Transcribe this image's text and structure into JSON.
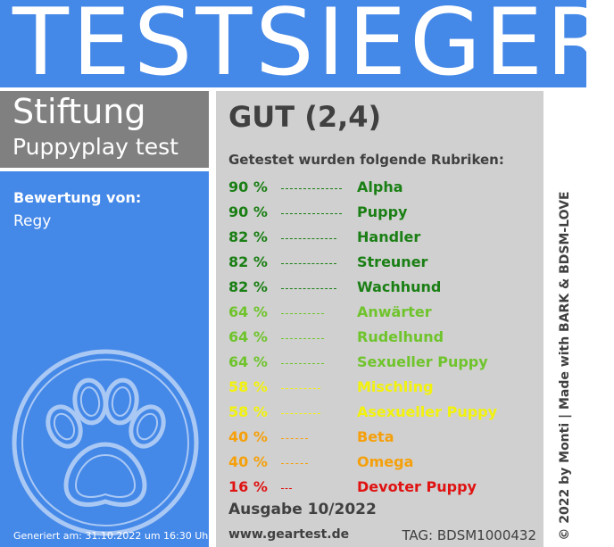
{
  "banner": {
    "title": "TESTSIEGER"
  },
  "organization": {
    "line1": "Stiftung",
    "line2": "Puppyplay test"
  },
  "rater": {
    "label": "Bewertung von:",
    "name": "Regy"
  },
  "generated": "Generiert am: 31.10.2022 um 16:30 Uhr",
  "result": {
    "grade": "GUT (2,4)",
    "intro": "Getestet wurden folgende Rubriken:"
  },
  "rows": [
    {
      "pct": "90 %",
      "category": "Alpha",
      "color": "#1a7f14",
      "level": 0.9
    },
    {
      "pct": "90 %",
      "category": "Puppy",
      "color": "#1a7f14",
      "level": 0.9
    },
    {
      "pct": "82 %",
      "category": "Handler",
      "color": "#1a7f14",
      "level": 0.82
    },
    {
      "pct": "82 %",
      "category": "Streuner",
      "color": "#1a7f14",
      "level": 0.82
    },
    {
      "pct": "82 %",
      "category": "Wachhund",
      "color": "#1a7f14",
      "level": 0.82
    },
    {
      "pct": "64 %",
      "category": "Anwärter",
      "color": "#6fc42c",
      "level": 0.64
    },
    {
      "pct": "64 %",
      "category": "Rudelhund",
      "color": "#6fc42c",
      "level": 0.64
    },
    {
      "pct": "64 %",
      "category": "Sexueller Puppy",
      "color": "#6fc42c",
      "level": 0.64
    },
    {
      "pct": "58 %",
      "category": "Mischling",
      "color": "#f2f20c",
      "level": 0.58
    },
    {
      "pct": "58 %",
      "category": "Asexueller Puppy",
      "color": "#f2f20c",
      "level": 0.58
    },
    {
      "pct": "40 %",
      "category": "Beta",
      "color": "#f5a00a",
      "level": 0.4
    },
    {
      "pct": "40 %",
      "category": "Omega",
      "color": "#f5a00a",
      "level": 0.4
    },
    {
      "pct": "16 %",
      "category": "Devoter Puppy",
      "color": "#e01212",
      "level": 0.16
    }
  ],
  "footer": {
    "issue": "Ausgabe 10/2022",
    "website": "www.geartest.de",
    "tag": "TAG: BDSM1000432"
  },
  "side": {
    "copyright": "© 2022 by Monti | Made with BARK & BDSM-LOVE"
  },
  "colors": {
    "badge_blue": "#4488e8",
    "org_gray": "#808080",
    "panel_gray": "#d0d0d0",
    "text_dark": "#404040"
  },
  "icons": {
    "paw": "paw-print-icon"
  }
}
